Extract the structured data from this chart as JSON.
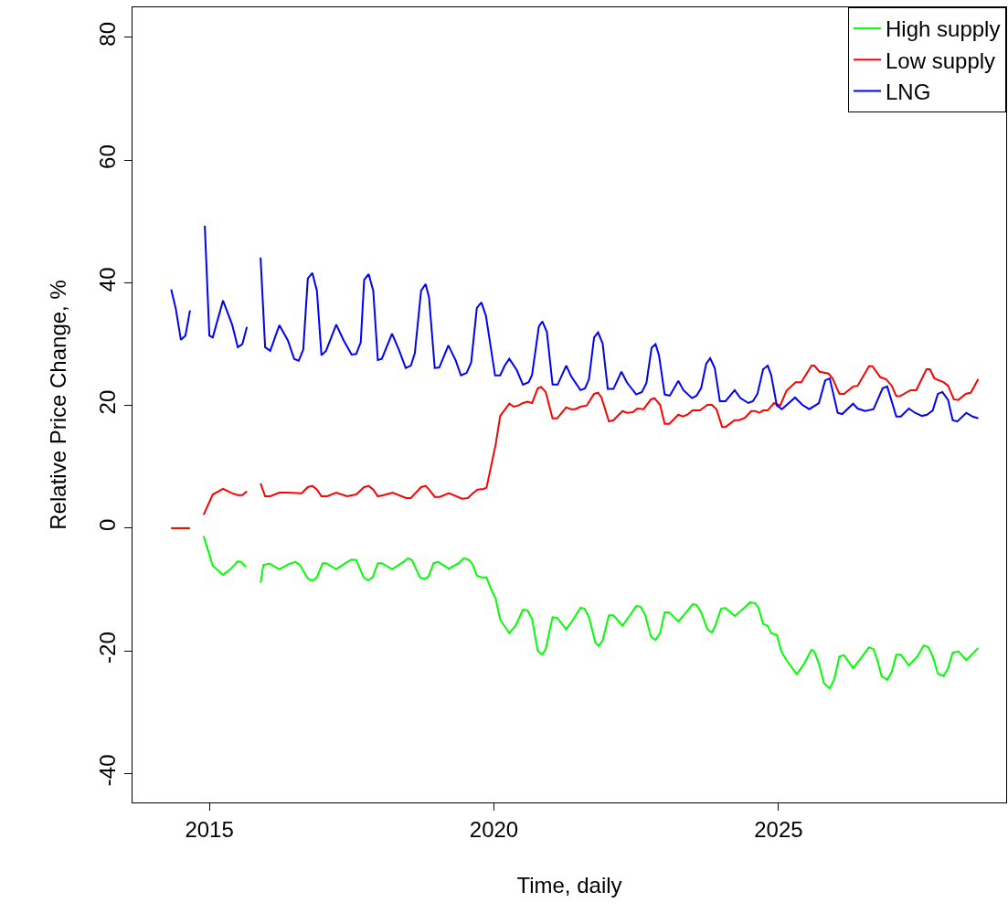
{
  "chart_data": {
    "type": "line",
    "xlabel": "Time, daily",
    "ylabel": "Relative Price Change, %",
    "xlim": [
      2013.65,
      2029.0
    ],
    "xticks": [
      2015,
      2020,
      2025
    ],
    "ylim": [
      -44.7,
      84.9
    ],
    "yticks": [
      -40,
      -20,
      0,
      20,
      40,
      60,
      80
    ],
    "legend": "top right",
    "series": [
      {
        "name": "High supply",
        "color": "#00ff00",
        "x": [
          2014.33,
          2014.66,
          2014.75,
          2014.9,
          2015.06,
          2015.24,
          2015.38,
          2015.5,
          2015.56,
          2015.64,
          2015.75,
          2015.9,
          2015.95,
          2016.06,
          2016.23,
          2016.41,
          2016.51,
          2016.59,
          2016.73,
          2016.81,
          2016.89,
          2016.99,
          2017.05,
          2017.23,
          2017.39,
          2017.5,
          2017.58,
          2017.71,
          2017.79,
          2017.87,
          2017.96,
          2018.03,
          2018.21,
          2018.41,
          2018.49,
          2018.56,
          2018.7,
          2018.78,
          2018.85,
          2018.94,
          2019.02,
          2019.21,
          2019.38,
          2019.47,
          2019.55,
          2019.62,
          2019.7,
          2019.78,
          2019.87,
          2019.94,
          2020.03,
          2020.11,
          2020.27,
          2020.38,
          2020.51,
          2020.59,
          2020.67,
          2020.77,
          2020.85,
          2020.91,
          2021.03,
          2021.11,
          2021.27,
          2021.39,
          2021.52,
          2021.59,
          2021.67,
          2021.78,
          2021.84,
          2021.91,
          2022.02,
          2022.1,
          2022.26,
          2022.39,
          2022.5,
          2022.58,
          2022.66,
          2022.76,
          2022.84,
          2022.92,
          2023.0,
          2023.08,
          2023.24,
          2023.38,
          2023.49,
          2023.56,
          2023.64,
          2023.75,
          2023.83,
          2023.89,
          2023.99,
          2024.07,
          2024.23,
          2024.36,
          2024.5,
          2024.59,
          2024.65,
          2024.73,
          2024.81,
          2024.87,
          2024.97,
          2025.05,
          2025.14,
          2025.32,
          2025.45,
          2025.58,
          2025.63,
          2025.71,
          2025.8,
          2025.9,
          2025.98,
          2026.07,
          2026.15,
          2026.31,
          2026.44,
          2026.59,
          2026.67,
          2026.73,
          2026.81,
          2026.91,
          2026.99,
          2027.07,
          2027.15,
          2027.29,
          2027.44,
          2027.55,
          2027.63,
          2027.71,
          2027.8,
          2027.9,
          2027.98,
          2028.06,
          2028.16,
          2028.3,
          2028.51
        ],
        "values": [
          0,
          0,
          null,
          -1.3,
          -6.1,
          -7.6,
          -6.6,
          -5.4,
          -5.5,
          -6.3,
          null,
          -8.9,
          -6.0,
          -5.8,
          -6.7,
          -5.8,
          -5.5,
          -6.0,
          -8.2,
          -8.6,
          -8.0,
          -5.7,
          -5.7,
          -6.7,
          -5.7,
          -5.1,
          -5.2,
          -8.0,
          -8.5,
          -8.0,
          -5.7,
          -5.7,
          -6.7,
          -5.5,
          -4.9,
          -5.2,
          -8.0,
          -8.3,
          -7.9,
          -5.7,
          -5.5,
          -6.6,
          -5.7,
          -4.9,
          -5.1,
          -5.8,
          -7.7,
          -8.0,
          -8.0,
          -9.7,
          -11.5,
          -14.9,
          -17.1,
          -15.9,
          -13.3,
          -13.4,
          -14.8,
          -20.0,
          -20.6,
          -19.7,
          -14.5,
          -14.6,
          -16.5,
          -14.9,
          -13.0,
          -13.1,
          -14.5,
          -18.6,
          -19.2,
          -18.3,
          -14.2,
          -14.2,
          -15.9,
          -14.2,
          -12.7,
          -12.8,
          -14.2,
          -17.7,
          -18.2,
          -17.1,
          -13.7,
          -13.7,
          -15.2,
          -13.7,
          -12.4,
          -12.5,
          -13.7,
          -16.5,
          -17.0,
          -15.9,
          -13.1,
          -13.0,
          -14.3,
          -13.3,
          -12.1,
          -12.2,
          -13.0,
          -15.6,
          -15.9,
          -17.1,
          -17.4,
          -20.1,
          -21.5,
          -23.8,
          -22.1,
          -19.8,
          -20.1,
          -22.1,
          -25.3,
          -26.1,
          -24.6,
          -20.9,
          -20.7,
          -22.8,
          -21.3,
          -19.4,
          -19.7,
          -21.3,
          -24.1,
          -24.7,
          -23.4,
          -20.6,
          -20.6,
          -22.4,
          -20.9,
          -19.1,
          -19.4,
          -20.9,
          -23.7,
          -24.1,
          -22.8,
          -20.3,
          -20.1,
          -21.5,
          -19.5
        ]
      },
      {
        "name": "Low supply",
        "color": "#ff0000",
        "x": [
          2014.33,
          2014.66,
          2014.75,
          2014.9,
          2015.06,
          2015.24,
          2015.4,
          2015.5,
          2015.58,
          2015.66,
          2015.75,
          2015.9,
          2015.98,
          2016.07,
          2016.23,
          2016.38,
          2016.62,
          2016.73,
          2016.81,
          2016.89,
          2016.97,
          2017.07,
          2017.23,
          2017.42,
          2017.58,
          2017.72,
          2017.8,
          2017.88,
          2017.96,
          2018.06,
          2018.22,
          2018.46,
          2018.54,
          2018.62,
          2018.72,
          2018.8,
          2018.86,
          2018.96,
          2019.05,
          2019.21,
          2019.44,
          2019.54,
          2019.63,
          2019.71,
          2019.82,
          2019.87,
          2020.03,
          2020.11,
          2020.27,
          2020.35,
          2020.43,
          2020.51,
          2020.59,
          2020.67,
          2020.77,
          2020.83,
          2020.91,
          2021.03,
          2021.11,
          2021.27,
          2021.35,
          2021.43,
          2021.52,
          2021.63,
          2021.76,
          2021.83,
          2021.89,
          2022.02,
          2022.1,
          2022.26,
          2022.34,
          2022.44,
          2022.52,
          2022.63,
          2022.76,
          2022.82,
          2022.92,
          2023.0,
          2023.08,
          2023.24,
          2023.32,
          2023.4,
          2023.49,
          2023.62,
          2023.75,
          2023.83,
          2023.91,
          2024.01,
          2024.07,
          2024.23,
          2024.31,
          2024.41,
          2024.52,
          2024.59,
          2024.66,
          2024.73,
          2024.81,
          2024.92,
          2025.03,
          2025.14,
          2025.3,
          2025.4,
          2025.58,
          2025.63,
          2025.72,
          2025.88,
          2025.95,
          2026.07,
          2026.15,
          2026.31,
          2026.39,
          2026.59,
          2026.65,
          2026.79,
          2026.89,
          2026.99,
          2027.07,
          2027.13,
          2027.32,
          2027.42,
          2027.6,
          2027.66,
          2027.74,
          2027.9,
          2027.98,
          2028.08,
          2028.16,
          2028.29,
          2028.38,
          2028.51
        ],
        "values": [
          0,
          0,
          null,
          2.2,
          5.5,
          6.4,
          5.7,
          5.4,
          5.4,
          6.0,
          null,
          7.3,
          5.2,
          5.2,
          5.8,
          5.8,
          5.7,
          6.7,
          6.9,
          6.3,
          5.2,
          5.2,
          5.8,
          5.2,
          5.5,
          6.7,
          6.9,
          6.3,
          5.2,
          5.4,
          5.8,
          4.9,
          4.9,
          5.7,
          6.7,
          6.9,
          6.3,
          5.1,
          5.1,
          5.7,
          4.8,
          4.9,
          5.7,
          6.3,
          6.4,
          6.6,
          13.6,
          18.3,
          20.3,
          19.8,
          20.0,
          20.4,
          20.6,
          20.4,
          22.8,
          23.0,
          22.2,
          17.9,
          17.9,
          19.7,
          19.4,
          19.4,
          19.8,
          20.0,
          21.9,
          22.1,
          21.3,
          17.4,
          17.6,
          19.1,
          18.8,
          18.9,
          19.5,
          19.4,
          21.0,
          21.2,
          20.1,
          17.0,
          17.0,
          18.5,
          18.2,
          18.5,
          19.2,
          19.2,
          20.1,
          20.1,
          19.4,
          16.5,
          16.5,
          17.6,
          17.6,
          18.0,
          19.1,
          19.1,
          18.8,
          19.2,
          19.2,
          20.4,
          20.0,
          22.4,
          23.8,
          23.8,
          26.5,
          26.5,
          25.5,
          25.2,
          24.4,
          21.9,
          21.9,
          23.1,
          23.2,
          26.4,
          26.4,
          24.6,
          24.3,
          23.2,
          21.5,
          21.5,
          22.5,
          22.5,
          25.9,
          25.9,
          24.4,
          23.8,
          23.2,
          21.0,
          20.9,
          21.9,
          22.1,
          24.3
        ]
      },
      {
        "name": "LNG",
        "color": "#0000ff",
        "x": [
          2014.33,
          2014.41,
          2014.5,
          2014.58,
          2014.66,
          2014.75,
          2014.92,
          2015.0,
          2015.06,
          2015.24,
          2015.4,
          2015.5,
          2015.58,
          2015.66,
          2015.75,
          2015.9,
          2015.98,
          2016.07,
          2016.23,
          2016.38,
          2016.49,
          2016.57,
          2016.65,
          2016.73,
          2016.81,
          2016.89,
          2016.97,
          2017.05,
          2017.23,
          2017.36,
          2017.5,
          2017.58,
          2017.66,
          2017.72,
          2017.8,
          2017.88,
          2017.96,
          2018.03,
          2018.21,
          2018.33,
          2018.45,
          2018.54,
          2018.61,
          2018.72,
          2018.8,
          2018.86,
          2018.96,
          2019.04,
          2019.2,
          2019.33,
          2019.42,
          2019.52,
          2019.6,
          2019.7,
          2019.78,
          2019.86,
          2020.02,
          2020.11,
          2020.19,
          2020.27,
          2020.4,
          2020.51,
          2020.61,
          2020.67,
          2020.79,
          2020.85,
          2020.93,
          2021.03,
          2021.12,
          2021.27,
          2021.36,
          2021.52,
          2021.6,
          2021.67,
          2021.76,
          2021.83,
          2021.91,
          2022.0,
          2022.1,
          2022.24,
          2022.34,
          2022.5,
          2022.6,
          2022.68,
          2022.77,
          2022.84,
          2022.9,
          2023.0,
          2023.09,
          2023.24,
          2023.33,
          2023.48,
          2023.56,
          2023.64,
          2023.73,
          2023.8,
          2023.88,
          2023.97,
          2024.07,
          2024.23,
          2024.33,
          2024.47,
          2024.55,
          2024.63,
          2024.73,
          2024.81,
          2024.87,
          2024.97,
          2025.06,
          2025.29,
          2025.42,
          2025.54,
          2025.71,
          2025.82,
          2025.9,
          2026.04,
          2026.12,
          2026.31,
          2026.39,
          2026.52,
          2026.67,
          2026.83,
          2026.91,
          2027.07,
          2027.15,
          2027.29,
          2027.4,
          2027.52,
          2027.61,
          2027.71,
          2027.8,
          2027.88,
          2027.98,
          2028.06,
          2028.14,
          2028.3,
          2028.41,
          2028.51
        ],
        "values": [
          38.9,
          35.8,
          30.7,
          31.4,
          35.5,
          null,
          49.3,
          31.4,
          31.1,
          37.1,
          33.2,
          29.5,
          30.0,
          32.8,
          null,
          44.1,
          29.5,
          28.9,
          33.1,
          30.6,
          27.6,
          27.3,
          29.1,
          40.7,
          41.6,
          38.7,
          28.2,
          28.9,
          33.2,
          30.6,
          28.3,
          28.4,
          30.3,
          40.5,
          41.4,
          38.7,
          27.4,
          27.6,
          31.7,
          29.1,
          26.1,
          26.5,
          28.5,
          38.7,
          39.8,
          37.6,
          26.1,
          26.2,
          29.8,
          27.3,
          24.9,
          25.3,
          27.0,
          35.9,
          36.8,
          34.6,
          24.9,
          24.9,
          26.5,
          27.6,
          25.8,
          23.4,
          23.8,
          25.0,
          32.9,
          33.7,
          32.0,
          23.4,
          23.4,
          26.5,
          24.7,
          22.5,
          22.8,
          24.3,
          31.1,
          31.9,
          30.1,
          22.7,
          22.7,
          25.5,
          23.7,
          21.8,
          22.2,
          23.7,
          29.4,
          30.0,
          28.2,
          21.8,
          21.6,
          24.0,
          22.5,
          21.2,
          21.6,
          22.8,
          26.8,
          27.7,
          26.1,
          20.7,
          20.7,
          22.5,
          21.2,
          20.4,
          20.7,
          21.9,
          25.9,
          26.5,
          25.0,
          20.0,
          19.4,
          21.3,
          20.1,
          19.4,
          20.4,
          24.1,
          24.4,
          18.8,
          18.6,
          20.3,
          19.5,
          19.1,
          19.4,
          22.8,
          23.1,
          18.2,
          18.2,
          19.5,
          18.8,
          18.3,
          18.5,
          19.2,
          21.9,
          22.2,
          20.9,
          17.6,
          17.4,
          18.8,
          18.2,
          17.9
        ]
      }
    ]
  }
}
